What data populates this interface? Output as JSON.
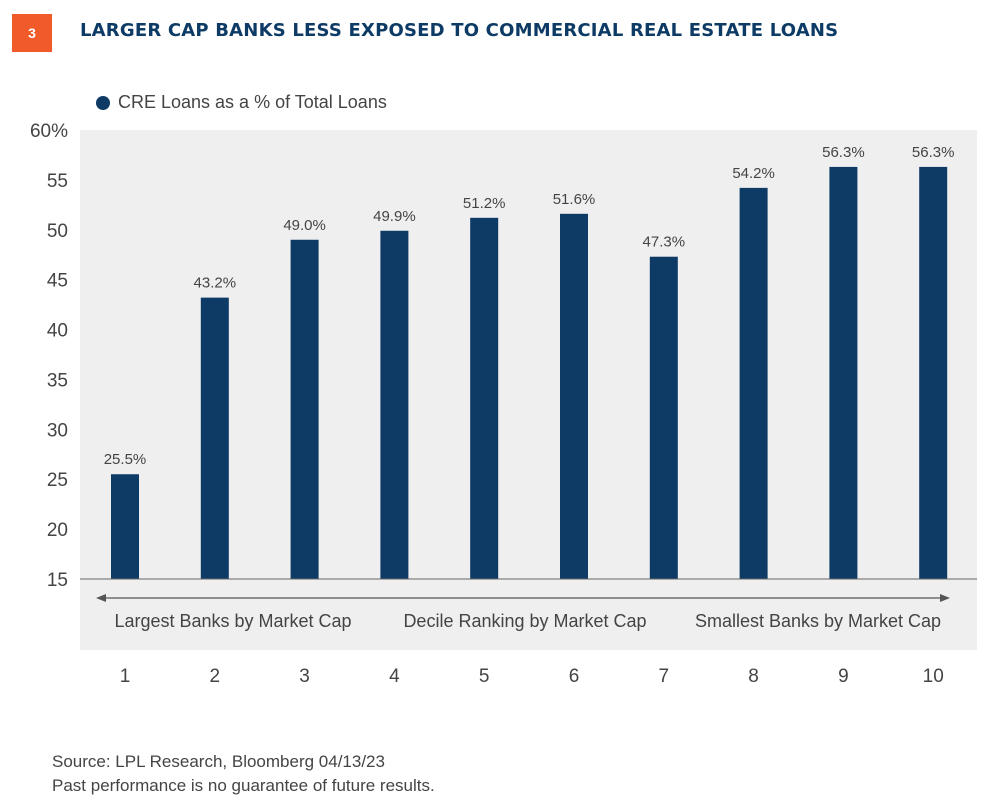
{
  "header": {
    "badge_number": "3",
    "title": "LARGER CAP BANKS LESS EXPOSED TO COMMERCIAL REAL ESTATE LOANS"
  },
  "colors": {
    "accent": "#f15a29",
    "bar": "#0d3b66",
    "title": "#0d3b66",
    "plot_bg": "#efefef"
  },
  "chart_data": {
    "type": "bar",
    "title": "LARGER CAP BANKS LESS EXPOSED TO COMMERCIAL REAL ESTATE LOANS",
    "legend": [
      "CRE Loans as a % of Total Loans"
    ],
    "categories": [
      "1",
      "2",
      "3",
      "4",
      "5",
      "6",
      "7",
      "8",
      "9",
      "10"
    ],
    "values": [
      25.5,
      43.2,
      49.0,
      49.9,
      51.2,
      51.6,
      47.3,
      54.2,
      56.3,
      56.3
    ],
    "data_labels": [
      "25.5%",
      "43.2%",
      "49.0%",
      "49.9%",
      "51.2%",
      "51.6%",
      "47.3%",
      "54.2%",
      "56.3%",
      "56.3%"
    ],
    "y_ticks": [
      "60%",
      "55",
      "50",
      "45",
      "40",
      "35",
      "30",
      "25",
      "20",
      "15"
    ],
    "ylim": [
      15,
      60
    ],
    "xlabel": "Decile Ranking by Market Cap",
    "x_annotations": {
      "left": "Largest Banks by Market Cap",
      "center": "Decile Ranking by Market Cap",
      "right": "Smallest Banks by Market Cap"
    },
    "grid": false
  },
  "footer": {
    "source": "Source: LPL Research, Bloomberg  04/13/23",
    "disclaimer": "Past performance is no guarantee of future results."
  }
}
